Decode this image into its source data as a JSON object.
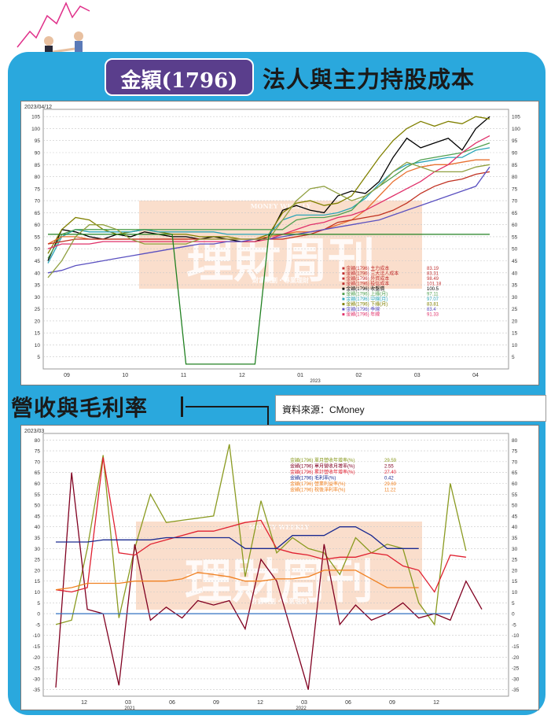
{
  "header": {
    "badge": "金穎(1796)",
    "title": "法人與主力持股成本"
  },
  "section2": {
    "title": "營收與毛利率",
    "source": "資料來源：CMoney"
  },
  "watermark": {
    "text": "理財周刊",
    "sub_top": "MONEY WEEKLY",
    "sub_bottom": "財富規劃・專業理財"
  },
  "colors": {
    "frame": "#2aa8dd",
    "badge": "#5a3e8c"
  },
  "chart_data": [
    {
      "type": "line",
      "date_label": "2023/04/12",
      "x_tick_labels": [
        "09",
        "10",
        "11",
        "12",
        "01",
        "02",
        "03",
        "04"
      ],
      "x_year_label": "2023",
      "yticks": [
        5,
        10,
        15,
        20,
        25,
        30,
        35,
        40,
        45,
        50,
        55,
        60,
        65,
        70,
        75,
        80,
        85,
        90,
        95,
        100,
        105
      ],
      "ylim": [
        0,
        108
      ],
      "n": 33,
      "series": [
        {
          "name": "主力成本",
          "color": "#000000",
          "values": [
            45,
            58,
            57,
            55,
            54,
            56,
            55,
            57,
            56,
            55,
            55,
            54,
            55,
            54,
            53,
            53,
            55,
            66,
            68,
            66,
            65,
            72,
            74,
            73,
            78,
            88,
            96,
            92,
            94,
            96,
            91,
            100,
            105
          ]
        },
        {
          "name": "三大法人成本",
          "color": "#808000",
          "values": [
            48,
            58,
            63,
            62,
            58,
            56,
            57,
            58,
            57,
            56,
            56,
            55,
            55,
            55,
            54,
            54,
            56,
            65,
            69,
            70,
            68,
            69,
            72,
            80,
            88,
            95,
            100,
            103,
            101,
            103,
            102,
            105,
            104
          ]
        },
        {
          "name": "外資成本",
          "color": "#2ba5b8",
          "values": [
            44,
            55,
            58,
            57,
            57,
            57,
            57,
            58,
            57,
            57,
            57,
            57,
            57,
            56,
            56,
            56,
            56,
            62,
            64,
            64,
            64,
            65,
            67,
            71,
            77,
            82,
            85,
            86,
            87,
            88,
            88,
            91,
            92
          ]
        },
        {
          "name": "投信成本",
          "color": "#50a050",
          "values": [
            46,
            56,
            58,
            58,
            58,
            58,
            58,
            58,
            58,
            58,
            58,
            58,
            58,
            58,
            58,
            58,
            58,
            58,
            62,
            63,
            63,
            64,
            66,
            72,
            76,
            80,
            84,
            87,
            88,
            89,
            90,
            92,
            94
          ]
        },
        {
          "name": "自營商成本",
          "color": "#e87030",
          "values": [
            52,
            55,
            55,
            54,
            54,
            54,
            54,
            54,
            54,
            54,
            54,
            54,
            54,
            54,
            54,
            54,
            55,
            56,
            57,
            57,
            58,
            60,
            62,
            66,
            72,
            78,
            82,
            84,
            85,
            85,
            86,
            87,
            87
          ]
        },
        {
          "name": "董監持股成本",
          "color": "#e0306a",
          "values": [
            50,
            52,
            52,
            52,
            53,
            53,
            53,
            53,
            53,
            53,
            53,
            53,
            53,
            53,
            53,
            53,
            54,
            56,
            58,
            60,
            61,
            63,
            64,
            66,
            69,
            72,
            75,
            78,
            82,
            85,
            90,
            94,
            97
          ]
        },
        {
          "name": "散戶成本",
          "color": "#c03020",
          "values": [
            52,
            53,
            54,
            54,
            54,
            54,
            54,
            54,
            54,
            54,
            54,
            54,
            54,
            54,
            54,
            54,
            54,
            54,
            55,
            56,
            58,
            61,
            62,
            63,
            64,
            66,
            69,
            73,
            76,
            78,
            79,
            81,
            82
          ]
        },
        {
          "name": "大戶成本",
          "color": "#5a50c0",
          "values": [
            40,
            41,
            43,
            44,
            45,
            46,
            47,
            48,
            49,
            50,
            51,
            52,
            52,
            53,
            53,
            54,
            54,
            55,
            56,
            57,
            58,
            59,
            60,
            61,
            62,
            64,
            66,
            68,
            70,
            72,
            74,
            76,
            84
          ]
        },
        {
          "name": "上櫃平均",
          "color": "#90a040",
          "values": [
            38,
            45,
            55,
            60,
            60,
            58,
            54,
            52,
            52,
            52,
            52,
            54,
            54,
            54,
            54,
            54,
            54,
            62,
            70,
            75,
            76,
            73,
            70,
            72,
            76,
            82,
            86,
            84,
            82,
            82,
            82,
            84,
            85
          ]
        },
        {
          "name": "庫存成本",
          "color": "#208020",
          "values": [
            56,
            56,
            56,
            56,
            56,
            56,
            56,
            56,
            56,
            56,
            2,
            2,
            2,
            2,
            2,
            2,
            56,
            56,
            56,
            56,
            56,
            56,
            56,
            56,
            56,
            56,
            56,
            56,
            56,
            56,
            56,
            56,
            56
          ]
        }
      ],
      "legend": {
        "placement": "bottom-right",
        "items": [
          {
            "label": "■ 金穎(1796) 主力成本",
            "value": "83.19",
            "color": "#c03030"
          },
          {
            "label": "■ 金穎(1796) 三大法人成本",
            "value": "83.31",
            "color": "#c03030"
          },
          {
            "label": "■ 金穎(1796) 外資成本",
            "value": "98.49",
            "color": "#c03030"
          },
          {
            "label": "■ 金穎(1796) 投信成本",
            "value": "101.18",
            "color": "#c03030"
          },
          {
            "label": "■ 金穎(1796) 收盤價",
            "value": "100.5",
            "color": "#000000"
          },
          {
            "label": "■ 金穎(1796) 上緣(月)",
            "value": "97.11",
            "color": "#50a050"
          },
          {
            "label": "■ 金穎(1796) 中線(月)",
            "value": "97.07",
            "color": "#2ba5b8"
          },
          {
            "label": "■ 金穎(1796) 下緣(月)",
            "value": "83.81",
            "color": "#808000"
          },
          {
            "label": "■ 金穎(1796) 季線",
            "value": "83.4",
            "color": "#5a50c0"
          },
          {
            "label": "■ 金穎(1796) 年線",
            "value": "91.33",
            "color": "#e0306a"
          }
        ]
      }
    },
    {
      "type": "line",
      "date_label": "2023/03",
      "x_tick_labels": [
        "12",
        "03",
        "06",
        "09",
        "12",
        "03",
        "06",
        "09",
        "12"
      ],
      "x_year_labels": [
        "2021",
        "2022"
      ],
      "yticks": [
        -35,
        -30,
        -25,
        -20,
        -15,
        -10,
        -5,
        0,
        5,
        10,
        15,
        20,
        25,
        30,
        35,
        40,
        45,
        50,
        55,
        60,
        65,
        70,
        75,
        80
      ],
      "ylim": [
        -38,
        83
      ],
      "n": 28,
      "series": [
        {
          "name": "單月營收年增率",
          "color": "#8a9a20",
          "values": [
            -5,
            -3,
            30,
            73,
            -2,
            30,
            55,
            42,
            43,
            44,
            45,
            78,
            17,
            52,
            28,
            35,
            30,
            28,
            18,
            35,
            28,
            32,
            30,
            5,
            -5,
            60,
            29,
            null
          ]
        },
        {
          "name": "單月營收月增率",
          "color": "#800020",
          "values": [
            -34,
            65,
            2,
            0,
            -33,
            32,
            -3,
            3,
            -2,
            6,
            4,
            6,
            -7,
            25,
            15,
            -10,
            -35,
            32,
            -5,
            4,
            -3,
            0,
            5,
            -2,
            0,
            -3,
            15,
            2
          ]
        },
        {
          "name": "累計營收年增率",
          "color": "#e02030",
          "values": [
            11,
            10,
            12,
            72,
            28,
            27,
            32,
            34,
            36,
            38,
            38,
            40,
            42,
            43,
            30,
            28,
            27,
            25,
            26,
            26,
            28,
            27,
            22,
            20,
            10,
            27,
            26,
            null
          ]
        },
        {
          "name": "毛利率",
          "color": "#1a2a90",
          "values": [
            33,
            33,
            33,
            34,
            34,
            34,
            34,
            35,
            35,
            35,
            35,
            35,
            30,
            30,
            30,
            36,
            36,
            36,
            40,
            40,
            36,
            30,
            30,
            30,
            null,
            null,
            null,
            null
          ]
        },
        {
          "name": "營業利益率",
          "color": "#f08020",
          "values": [
            11,
            12,
            14,
            14,
            14,
            15,
            15,
            15,
            16,
            19,
            18,
            17,
            15,
            15,
            16,
            16,
            17,
            20,
            20,
            20,
            16,
            12,
            12,
            12,
            null,
            null,
            null,
            null
          ]
        },
        {
          "name": "稅後淨利率",
          "color": "#3070c0",
          "values": [
            0,
            0,
            0,
            0,
            0,
            0,
            0,
            0,
            0,
            0,
            0,
            0,
            0,
            0,
            0,
            0,
            0,
            0,
            0,
            0,
            0,
            0,
            0,
            0,
            0,
            0,
            null,
            null
          ]
        }
      ],
      "legend": {
        "placement": "top-center",
        "items": [
          {
            "label": "金穎(1796) 單月營收年增率(%)",
            "value": "29.59",
            "color": "#8a9a20"
          },
          {
            "label": "金穎(1796) 單月營收月增率(%)",
            "value": "2.55",
            "color": "#800020"
          },
          {
            "label": "金穎(1796) 累計營收年增率(%)",
            "value": "27.40",
            "color": "#e02030"
          },
          {
            "label": "金穎(1796) 毛利率(%)",
            "value": "0.42",
            "color": "#1a2a90"
          },
          {
            "label": "金穎(1796) 營業利益率(%)",
            "value": "29.69",
            "color": "#f08020"
          },
          {
            "label": "金穎(1796) 稅後淨利率(%)",
            "value": "11.22",
            "color": "#f08020"
          }
        ]
      }
    }
  ]
}
